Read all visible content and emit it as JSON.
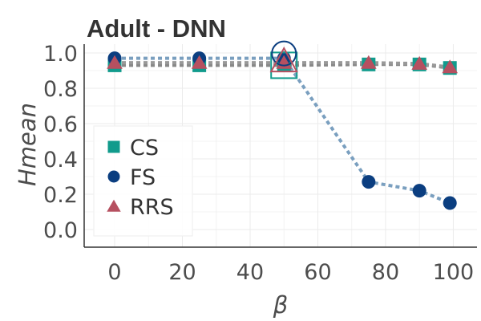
{
  "chart_data": {
    "type": "line",
    "title": "Adult - DNN",
    "xlabel": "β",
    "ylabel": "Hmean",
    "xlim": [
      -9,
      107
    ],
    "ylim": [
      -0.1,
      1.05
    ],
    "x_ticks": [
      0,
      20,
      40,
      60,
      80,
      100
    ],
    "y_ticks": [
      0.0,
      0.2,
      0.4,
      0.6,
      0.8,
      1.0
    ],
    "x_tick_labels": [
      "0",
      "20",
      "40",
      "60",
      "80",
      "100"
    ],
    "y_tick_labels": [
      "0.0",
      "0.2",
      "0.4",
      "0.6",
      "0.8",
      "1.0"
    ],
    "grid": true,
    "legend_position": "left",
    "highlight_x": 50,
    "series": [
      {
        "name": "CS",
        "marker": "square",
        "color": "#119b8c",
        "line_color": "#888888",
        "x": [
          0,
          25,
          50,
          75,
          90,
          99
        ],
        "y": [
          0.93,
          0.93,
          0.93,
          0.935,
          0.935,
          0.915
        ]
      },
      {
        "name": "FS",
        "marker": "circle",
        "color": "#0b3e80",
        "line_color": "#7a9fbf",
        "x": [
          0,
          25,
          50,
          75,
          90,
          99
        ],
        "y": [
          0.97,
          0.97,
          0.97,
          0.27,
          0.22,
          0.15
        ]
      },
      {
        "name": "RRS",
        "marker": "triangle",
        "color": "#b65060",
        "line_color": "#999999",
        "x": [
          0,
          25,
          50,
          75,
          90,
          99
        ],
        "y": [
          0.945,
          0.945,
          0.945,
          0.945,
          0.94,
          0.92
        ]
      }
    ]
  }
}
